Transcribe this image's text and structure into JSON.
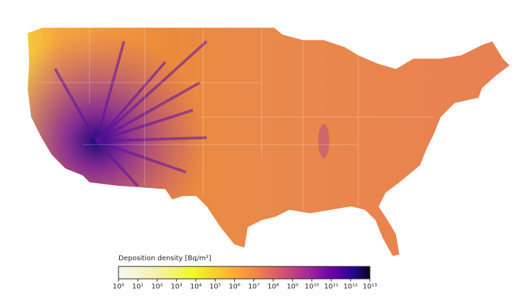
{
  "colorbar": {
    "label": "Deposition density [Bq/m²]",
    "log": true,
    "lim": [
      1,
      10000000000000
    ],
    "ticks": [
      {
        "value": 1,
        "label": "10⁰"
      },
      {
        "value": 10,
        "label": "10¹"
      },
      {
        "value": 100,
        "label": "10²"
      },
      {
        "value": 1000,
        "label": "10³"
      },
      {
        "value": 10000,
        "label": "10⁴"
      },
      {
        "value": 100000,
        "label": "10⁵"
      },
      {
        "value": 1000000,
        "label": "10⁶"
      },
      {
        "value": 10000000,
        "label": "10⁷"
      },
      {
        "value": 100000000,
        "label": "10⁸"
      },
      {
        "value": 1000000000,
        "label": "10⁹"
      },
      {
        "value": 10000000000,
        "label": "10¹⁰"
      },
      {
        "value": 100000000000,
        "label": "10¹¹"
      },
      {
        "value": 1000000000000,
        "label": "10¹²"
      },
      {
        "value": 10000000000000,
        "label": "10¹³"
      }
    ]
  }
}
